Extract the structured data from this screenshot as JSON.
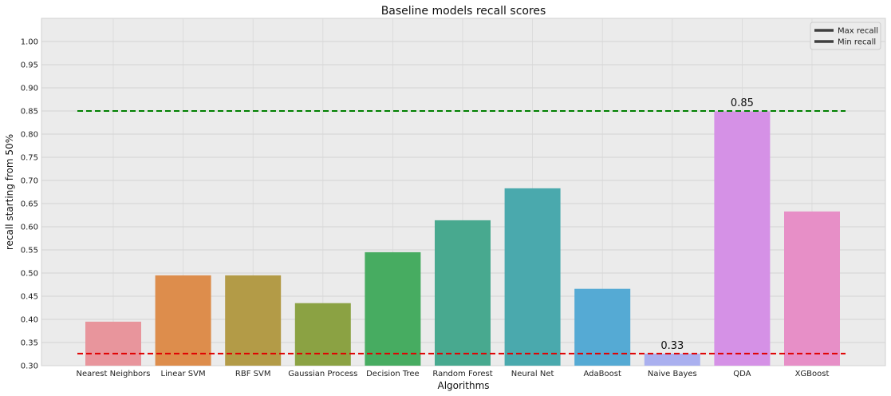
{
  "chart_data": {
    "type": "bar",
    "title": "Baseline models recall scores",
    "xlabel": "Algorithms",
    "ylabel": "recall starting from 50%",
    "ylim": [
      0.3,
      1.05
    ],
    "yticks": [
      "0.30",
      "0.35",
      "0.40",
      "0.45",
      "0.50",
      "0.55",
      "0.60",
      "0.65",
      "0.70",
      "0.75",
      "0.80",
      "0.85",
      "0.90",
      "0.95",
      "1.00"
    ],
    "categories": [
      "Nearest Neighbors",
      "Linear SVM",
      "RBF SVM",
      "Gaussian Process",
      "Decision Tree",
      "Random Forest",
      "Neural Net",
      "AdaBoost",
      "Naive Bayes",
      "QDA",
      "XGBoost"
    ],
    "values": [
      0.395,
      0.495,
      0.495,
      0.435,
      0.545,
      0.614,
      0.683,
      0.466,
      0.326,
      0.849,
      0.633
    ],
    "colors": [
      "#e8959c",
      "#dd8d4c",
      "#b39b47",
      "#8ba243",
      "#47ac61",
      "#48a98f",
      "#4aa9ad",
      "#55aad4",
      "#aab0ef",
      "#d591e6",
      "#e78fc7"
    ],
    "reference_lines": [
      {
        "name": "Max recall",
        "value": 0.85,
        "color": "#008000"
      },
      {
        "name": "Min recall",
        "value": 0.326,
        "color": "#e00000"
      }
    ],
    "annotations": [
      {
        "category": "QDA",
        "text": "0.85",
        "value": 0.85
      },
      {
        "category": "Naive Bayes",
        "text": "0.33",
        "value": 0.326
      }
    ],
    "legend": {
      "placement": "top-right",
      "entries": [
        "Max recall",
        "Min recall"
      ]
    },
    "grid": true,
    "background": "#ebebeb"
  }
}
